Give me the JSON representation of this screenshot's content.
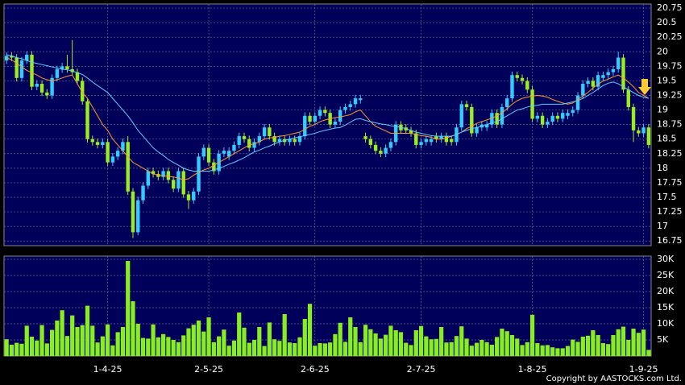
{
  "chart_data": [
    {
      "type": "candlestick",
      "categories": [
        null,
        null,
        null,
        null,
        null,
        null,
        null,
        null,
        null,
        null,
        null,
        null,
        null,
        null,
        null,
        null,
        null,
        null,
        null,
        null,
        "1-4-25",
        null,
        null,
        null,
        null,
        null,
        null,
        null,
        null,
        null,
        null,
        null,
        null,
        null,
        null,
        null,
        null,
        null,
        null,
        null,
        "2-5-25",
        null,
        null,
        null,
        null,
        null,
        null,
        null,
        null,
        null,
        null,
        null,
        null,
        null,
        null,
        null,
        null,
        null,
        null,
        null,
        null,
        "2-6-25",
        null,
        null,
        null,
        null,
        null,
        null,
        null,
        null,
        null,
        null,
        null,
        null,
        null,
        null,
        null,
        null,
        null,
        null,
        null,
        null,
        "2-7-25",
        null,
        null,
        null,
        null,
        null,
        null,
        null,
        null,
        null,
        null,
        null,
        null,
        null,
        null,
        null,
        null,
        null,
        null,
        null,
        null,
        null,
        "1-8-25",
        null,
        null,
        null,
        null,
        null,
        null,
        null,
        null,
        null,
        null,
        null,
        null,
        null,
        null,
        null,
        null,
        null,
        null,
        null,
        null,
        null,
        "1-9-25",
        null
      ],
      "open": [
        19.85,
        19.93,
        19.9,
        19.55,
        19.85,
        19.95,
        19.4,
        19.45,
        19.3,
        19.25,
        19.55,
        19.7,
        19.75,
        19.7,
        19.65,
        19.5,
        19.15,
        18.5,
        18.45,
        18.4,
        18.45,
        18.1,
        18.2,
        18.3,
        18.45,
        17.6,
        16.9,
        17.45,
        17.7,
        17.95,
        17.9,
        17.85,
        17.95,
        17.8,
        17.65,
        17.95,
        17.55,
        17.45,
        17.6,
        18.2,
        18.35,
        18.1,
        17.95,
        18.25,
        18.2,
        18.3,
        18.4,
        18.55,
        18.5,
        18.35,
        18.45,
        18.55,
        18.7,
        18.55,
        18.45,
        18.5,
        18.45,
        18.5,
        18.45,
        18.55,
        18.9,
        18.8,
        18.9,
        19.0,
        18.95,
        18.75,
        18.8,
        19.0,
        19.05,
        19.1,
        19.17,
        18.55,
        18.5,
        18.4,
        18.3,
        18.25,
        18.35,
        18.45,
        18.75,
        18.7,
        18.65,
        18.6,
        18.4,
        18.45,
        18.45,
        18.55,
        18.5,
        18.55,
        18.5,
        18.45,
        18.7,
        19.1,
        19.05,
        18.6,
        18.7,
        18.7,
        18.75,
        18.95,
        18.75,
        19.05,
        19.2,
        19.6,
        19.55,
        19.5,
        19.35,
        18.85,
        18.9,
        18.75,
        18.8,
        18.9,
        18.85,
        18.9,
        18.95,
        19.0,
        19.25,
        19.45,
        19.5,
        19.4,
        19.55,
        19.6,
        19.65,
        19.7,
        19.9,
        19.35,
        19.05,
        18.65,
        18.6,
        18.7
      ],
      "high": [
        19.99,
        19.99,
        19.96,
        19.91,
        20.01,
        20.01,
        19.51,
        19.51,
        19.36,
        19.61,
        19.76,
        19.81,
        19.95,
        20.2,
        19.71,
        19.56,
        19.21,
        18.56,
        18.51,
        18.51,
        18.51,
        18.26,
        18.36,
        18.51,
        18.55,
        17.66,
        17.51,
        17.76,
        18.01,
        18.01,
        17.96,
        18.01,
        18.01,
        17.86,
        18.01,
        18.01,
        17.61,
        17.66,
        18.26,
        18.41,
        18.41,
        18.16,
        18.31,
        18.36,
        18.36,
        18.46,
        18.61,
        18.61,
        18.56,
        18.51,
        18.61,
        18.76,
        18.76,
        18.61,
        18.56,
        18.56,
        18.56,
        18.56,
        18.61,
        18.96,
        18.96,
        18.96,
        19.06,
        19.06,
        19.01,
        18.86,
        19.06,
        19.11,
        19.16,
        19.26,
        19.26,
        18.61,
        18.56,
        18.46,
        18.36,
        18.41,
        18.51,
        18.81,
        18.81,
        18.76,
        18.71,
        18.66,
        18.51,
        18.56,
        18.56,
        18.61,
        18.61,
        18.61,
        18.56,
        18.76,
        19.16,
        19.16,
        19.11,
        18.76,
        18.81,
        18.81,
        19.01,
        19.01,
        19.11,
        19.26,
        19.66,
        19.66,
        19.61,
        19.56,
        19.41,
        18.96,
        18.96,
        18.86,
        18.96,
        18.96,
        19.01,
        19.01,
        19.06,
        19.31,
        19.51,
        19.56,
        19.56,
        19.66,
        19.66,
        19.71,
        19.76,
        20.0,
        19.96,
        19.41,
        19.11,
        18.71,
        18.76,
        18.76
      ],
      "low": [
        19.79,
        19.84,
        19.49,
        19.49,
        19.79,
        19.34,
        19.34,
        19.24,
        19.19,
        19.19,
        19.49,
        19.64,
        19.64,
        19.59,
        19.44,
        19.09,
        18.44,
        18.39,
        18.34,
        18.34,
        18.04,
        18.04,
        18.14,
        18.24,
        17.54,
        16.8,
        16.85,
        17.39,
        17.64,
        17.84,
        17.79,
        17.79,
        17.74,
        17.59,
        17.59,
        17.49,
        17.3,
        17.39,
        17.54,
        18.14,
        18.04,
        17.89,
        17.89,
        18.19,
        18.14,
        18.24,
        18.34,
        18.44,
        18.29,
        18.29,
        18.39,
        18.49,
        18.49,
        18.39,
        18.39,
        18.39,
        18.39,
        18.39,
        18.39,
        18.49,
        18.74,
        18.74,
        18.84,
        18.89,
        18.69,
        18.69,
        18.74,
        18.94,
        18.99,
        19.04,
        19.11,
        18.44,
        18.34,
        18.24,
        18.19,
        18.19,
        18.29,
        18.39,
        18.59,
        18.59,
        18.54,
        18.34,
        18.34,
        18.39,
        18.39,
        18.44,
        18.44,
        18.39,
        18.39,
        18.39,
        18.64,
        18.99,
        18.54,
        18.54,
        18.64,
        18.64,
        18.69,
        18.69,
        18.69,
        18.99,
        19.14,
        19.49,
        19.44,
        19.29,
        18.79,
        18.79,
        18.69,
        18.69,
        18.74,
        18.79,
        18.79,
        18.84,
        18.89,
        18.94,
        19.19,
        19.39,
        19.34,
        19.34,
        19.49,
        19.54,
        19.59,
        19.64,
        19.29,
        18.99,
        18.45,
        18.54,
        18.54,
        18.34
      ],
      "close": [
        19.93,
        19.9,
        19.55,
        19.85,
        19.95,
        19.4,
        19.45,
        19.3,
        19.25,
        19.55,
        19.7,
        19.75,
        19.7,
        19.65,
        19.5,
        19.15,
        18.5,
        18.45,
        18.4,
        18.45,
        18.1,
        18.2,
        18.3,
        18.45,
        17.6,
        16.9,
        17.45,
        17.7,
        17.95,
        17.9,
        17.85,
        17.95,
        17.8,
        17.65,
        17.95,
        17.55,
        17.45,
        17.6,
        18.2,
        18.35,
        18.1,
        17.95,
        18.25,
        18.3,
        18.3,
        18.4,
        18.55,
        18.5,
        18.35,
        18.45,
        18.55,
        18.7,
        18.55,
        18.45,
        18.5,
        18.45,
        18.5,
        18.45,
        18.55,
        18.9,
        18.8,
        18.9,
        19.0,
        18.95,
        18.75,
        18.8,
        19.0,
        19.05,
        19.1,
        19.2,
        19.2,
        18.5,
        18.4,
        18.3,
        18.25,
        18.35,
        18.45,
        18.75,
        18.65,
        18.65,
        18.6,
        18.4,
        18.45,
        18.5,
        18.5,
        18.5,
        18.55,
        18.45,
        18.45,
        18.7,
        19.1,
        19.05,
        18.6,
        18.7,
        18.75,
        18.75,
        18.95,
        18.75,
        19.05,
        19.2,
        19.6,
        19.55,
        19.5,
        19.35,
        18.85,
        18.9,
        18.75,
        18.8,
        18.9,
        18.85,
        18.95,
        18.95,
        19.0,
        19.25,
        19.45,
        19.5,
        19.4,
        19.6,
        19.6,
        19.65,
        19.7,
        19.9,
        19.35,
        19.05,
        18.65,
        18.6,
        18.7,
        18.4
      ],
      "up_color": "#33ccff",
      "down_color": "#99ee22",
      "series": [
        {
          "color": "#ff9933",
          "values": [
            19.9,
            19.86,
            19.8,
            19.74,
            19.68,
            19.64,
            19.6,
            19.55,
            19.52,
            19.5,
            19.52,
            19.55,
            19.58,
            19.6,
            19.45,
            19.3,
            19.2,
            19.05,
            18.9,
            18.75,
            18.65,
            18.5,
            18.4,
            18.3,
            18.2,
            18.1,
            18.05,
            18.0,
            17.95,
            17.9,
            17.88,
            17.87,
            17.86,
            17.85,
            17.83,
            17.8,
            17.82,
            17.88,
            17.93,
            17.97,
            18.0,
            18.05,
            18.1,
            18.15,
            18.2,
            18.25,
            18.3,
            18.35,
            18.4,
            18.42,
            18.45,
            18.5,
            18.52,
            18.53,
            18.55,
            18.56,
            18.58,
            18.6,
            18.62,
            18.67,
            18.72,
            18.75,
            18.8,
            18.83,
            18.85,
            18.87,
            18.88,
            18.9,
            18.92,
            18.97,
            19.0,
            18.9,
            18.8,
            18.72,
            18.68,
            18.64,
            18.6,
            18.6,
            18.6,
            18.6,
            18.6,
            18.58,
            18.56,
            18.55,
            18.53,
            18.5,
            18.5,
            18.52,
            18.55,
            18.58,
            18.62,
            18.68,
            18.72,
            18.77,
            18.8,
            18.83,
            18.86,
            18.9,
            18.95,
            19.02,
            19.1,
            19.16,
            19.2,
            19.22,
            19.24,
            19.25,
            19.24,
            19.22,
            19.18,
            19.15,
            19.12,
            19.1,
            19.12,
            19.18,
            19.24,
            19.3,
            19.38,
            19.44,
            19.5,
            19.53,
            19.57,
            19.6,
            19.55,
            19.48,
            19.4,
            19.3,
            19.25,
            19.2
          ]
        },
        {
          "color": "#66ccff",
          "values": [
            19.95,
            19.93,
            19.9,
            19.88,
            19.85,
            19.82,
            19.8,
            19.78,
            19.76,
            19.74,
            19.72,
            19.7,
            19.69,
            19.67,
            19.64,
            19.61,
            19.55,
            19.48,
            19.42,
            19.36,
            19.3,
            19.2,
            19.1,
            19.0,
            18.9,
            18.78,
            18.65,
            18.55,
            18.45,
            18.35,
            18.28,
            18.22,
            18.15,
            18.1,
            18.05,
            18.0,
            17.97,
            17.95,
            17.95,
            17.95,
            17.95,
            17.97,
            18.0,
            18.03,
            18.07,
            18.1,
            18.14,
            18.18,
            18.23,
            18.28,
            18.31,
            18.35,
            18.38,
            18.42,
            18.45,
            18.48,
            18.5,
            18.52,
            18.54,
            18.56,
            18.58,
            18.6,
            18.63,
            18.65,
            18.67,
            18.69,
            18.7,
            18.74,
            18.79,
            18.84,
            18.85,
            18.82,
            18.8,
            18.78,
            18.76,
            18.75,
            18.73,
            18.72,
            18.7,
            18.68,
            18.65,
            18.62,
            18.6,
            18.58,
            18.56,
            18.55,
            18.55,
            18.55,
            18.55,
            18.58,
            18.62,
            18.65,
            18.68,
            18.7,
            18.72,
            18.75,
            18.78,
            18.8,
            18.85,
            18.9,
            18.95,
            19.0,
            19.02,
            19.05,
            19.07,
            19.08,
            19.1,
            19.1,
            19.1,
            19.1,
            19.1,
            19.12,
            19.14,
            19.16,
            19.2,
            19.25,
            19.3,
            19.36,
            19.42,
            19.46,
            19.48,
            19.45,
            19.4,
            19.35,
            19.3,
            19.25,
            19.22,
            19.2
          ]
        }
      ],
      "ylim": [
        16.67,
        20.82
      ],
      "yticks": [
        16.75,
        17,
        17.25,
        17.5,
        17.75,
        18,
        18.25,
        18.5,
        18.75,
        19,
        19.25,
        19.5,
        19.75,
        20,
        20.25,
        20.5,
        20.75
      ],
      "grid": true
    },
    {
      "type": "bar",
      "color": "#88ee22",
      "values": [
        5200,
        3500,
        4100,
        3800,
        9400,
        6000,
        4800,
        9600,
        3900,
        8100,
        11000,
        14200,
        6200,
        12600,
        9000,
        9600,
        15600,
        9400,
        4200,
        6100,
        9800,
        3300,
        7400,
        9000,
        29500,
        17000,
        10000,
        5600,
        5400,
        9800,
        5800,
        6800,
        5900,
        5000,
        4300,
        6400,
        8600,
        9700,
        11000,
        7600,
        12000,
        4300,
        6100,
        8200,
        3200,
        4800,
        13500,
        8800,
        4100,
        5000,
        9000,
        3100,
        10400,
        5200,
        4700,
        13000,
        4200,
        4000,
        5800,
        11500,
        16200,
        3200,
        4000,
        3900,
        4200,
        6800,
        10300,
        4400,
        12000,
        9000,
        4300,
        9700,
        8300,
        7000,
        5400,
        6600,
        9400,
        8000,
        7400,
        4100,
        3400,
        8000,
        9300,
        6100,
        5200,
        5300,
        9000,
        4200,
        4300,
        6200,
        9200,
        5400,
        3200,
        4100,
        5000,
        4300,
        3500,
        5900,
        8500,
        7700,
        6500,
        5400,
        3400,
        4300,
        12800,
        4000,
        3300,
        3400,
        2700,
        2400,
        2400,
        3100,
        5100,
        4400,
        6000,
        6300,
        8000,
        6500,
        4000,
        3700,
        6500,
        8300,
        9100,
        5000,
        8500,
        7200,
        8200,
        1900
      ],
      "ylim": [
        0,
        31000
      ],
      "yticks": [
        {
          "value": 5000,
          "label": "5K"
        },
        {
          "value": 10000,
          "label": "10K"
        },
        {
          "value": 15000,
          "label": "15K"
        },
        {
          "value": 20000,
          "label": "20K"
        },
        {
          "value": 25000,
          "label": "25K"
        },
        {
          "value": 30000,
          "label": "30K"
        }
      ],
      "grid": true
    }
  ],
  "copyright": "Copyright by AASTOCKS.com Ltd."
}
